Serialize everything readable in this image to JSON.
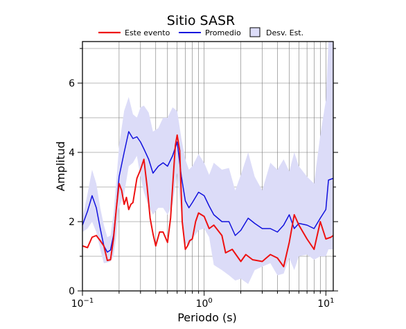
{
  "chart_data": {
    "type": "line",
    "title": "Sitio SASR",
    "xlabel": "Periodo (s)",
    "ylabel": "Amplitud",
    "x_scale": "log",
    "xlim": [
      0.1,
      11.5
    ],
    "ylim": [
      0,
      7.2
    ],
    "x_ticks": [
      {
        "value": 0.1,
        "base": "10",
        "exp": "−1"
      },
      {
        "value": 1,
        "base": "10",
        "exp": "0"
      },
      {
        "value": 10,
        "base": "10",
        "exp": "1"
      }
    ],
    "y_ticks": [
      {
        "value": 0,
        "label": "0"
      },
      {
        "value": 2,
        "label": "2"
      },
      {
        "value": 4,
        "label": "4"
      },
      {
        "value": 6,
        "label": "6"
      }
    ],
    "grid": true,
    "legend_position": "top",
    "colors": {
      "este_evento": "#ee1111",
      "promedio": "#1111dd",
      "desv_fill": "#dcdcf8"
    },
    "legend": {
      "este_evento": "Este evento",
      "promedio": "Promedio",
      "desv": "Desv. Est."
    },
    "series": [
      {
        "name": "Este evento",
        "x": [
          0.1,
          0.11,
          0.12,
          0.13,
          0.14,
          0.15,
          0.16,
          0.17,
          0.18,
          0.19,
          0.2,
          0.21,
          0.22,
          0.23,
          0.24,
          0.25,
          0.26,
          0.28,
          0.3,
          0.32,
          0.34,
          0.36,
          0.38,
          0.4,
          0.43,
          0.46,
          0.5,
          0.53,
          0.56,
          0.58,
          0.6,
          0.63,
          0.66,
          0.7,
          0.73,
          0.76,
          0.8,
          0.85,
          0.9,
          1.0,
          1.1,
          1.2,
          1.4,
          1.5,
          1.7,
          2.0,
          2.2,
          2.5,
          3.0,
          3.5,
          4.0,
          4.5,
          5.0,
          5.5,
          6.0,
          7.0,
          8.0,
          9.0,
          10.0,
          11.0,
          11.5
        ],
        "y": [
          1.3,
          1.25,
          1.55,
          1.6,
          1.45,
          1.3,
          0.88,
          0.9,
          1.5,
          2.4,
          3.1,
          2.9,
          2.5,
          2.7,
          2.35,
          2.5,
          2.55,
          3.25,
          3.5,
          3.8,
          3.0,
          2.1,
          1.65,
          1.3,
          1.7,
          1.7,
          1.4,
          2.1,
          3.4,
          4.2,
          4.5,
          4.05,
          2.0,
          1.2,
          1.3,
          1.45,
          1.5,
          2.0,
          2.25,
          2.15,
          1.8,
          1.9,
          1.6,
          1.1,
          1.2,
          0.85,
          1.05,
          0.9,
          0.85,
          1.05,
          0.95,
          0.7,
          1.4,
          2.2,
          1.9,
          1.5,
          1.2,
          2.0,
          1.5,
          1.55,
          1.6
        ]
      },
      {
        "name": "Promedio",
        "x": [
          0.1,
          0.11,
          0.12,
          0.13,
          0.14,
          0.15,
          0.16,
          0.17,
          0.18,
          0.19,
          0.2,
          0.22,
          0.24,
          0.26,
          0.28,
          0.3,
          0.32,
          0.35,
          0.38,
          0.42,
          0.46,
          0.5,
          0.55,
          0.6,
          0.65,
          0.7,
          0.75,
          0.8,
          0.9,
          1.0,
          1.1,
          1.2,
          1.4,
          1.6,
          1.8,
          2.0,
          2.3,
          2.6,
          3.0,
          3.5,
          4.0,
          4.5,
          5.0,
          5.5,
          6.0,
          7.0,
          8.0,
          9.0,
          10.0,
          10.5,
          11.5
        ],
        "y": [
          1.9,
          2.3,
          2.75,
          2.4,
          1.8,
          1.3,
          1.12,
          1.18,
          1.6,
          2.4,
          3.3,
          4.0,
          4.6,
          4.4,
          4.45,
          4.3,
          4.1,
          3.8,
          3.4,
          3.6,
          3.7,
          3.6,
          3.9,
          4.3,
          3.3,
          2.6,
          2.4,
          2.55,
          2.85,
          2.75,
          2.45,
          2.2,
          2.0,
          2.0,
          1.6,
          1.75,
          2.1,
          1.95,
          1.8,
          1.8,
          1.7,
          1.9,
          2.2,
          1.8,
          1.95,
          1.9,
          1.8,
          2.1,
          2.35,
          3.2,
          3.25
        ]
      }
    ],
    "band": {
      "name": "Desv. Est.",
      "x": [
        0.1,
        0.11,
        0.12,
        0.13,
        0.14,
        0.15,
        0.16,
        0.17,
        0.18,
        0.19,
        0.2,
        0.22,
        0.24,
        0.26,
        0.28,
        0.3,
        0.32,
        0.35,
        0.38,
        0.42,
        0.46,
        0.5,
        0.55,
        0.6,
        0.65,
        0.7,
        0.75,
        0.8,
        0.9,
        1.0,
        1.1,
        1.2,
        1.4,
        1.6,
        1.8,
        2.0,
        2.3,
        2.6,
        3.0,
        3.5,
        4.0,
        4.5,
        5.0,
        5.5,
        6.0,
        7.0,
        8.0,
        9.0,
        10.0,
        10.5,
        11.5
      ],
      "upper": [
        2.1,
        2.8,
        3.5,
        3.1,
        2.4,
        1.9,
        1.55,
        1.6,
        2.2,
        3.2,
        4.2,
        5.2,
        5.6,
        5.1,
        5.0,
        5.3,
        5.35,
        5.15,
        4.6,
        4.7,
        5.0,
        5.0,
        5.3,
        5.2,
        4.4,
        3.8,
        3.5,
        3.6,
        3.95,
        3.7,
        3.35,
        3.7,
        3.5,
        3.55,
        2.9,
        3.35,
        4.0,
        3.3,
        2.9,
        3.7,
        3.5,
        3.8,
        3.45,
        4.0,
        3.6,
        3.3,
        3.1,
        4.5,
        5.5,
        7.2,
        7.2
      ],
      "lower": [
        1.7,
        1.8,
        2.0,
        1.7,
        1.2,
        0.8,
        0.82,
        0.85,
        1.0,
        1.6,
        2.4,
        2.8,
        3.6,
        3.7,
        3.9,
        3.3,
        2.85,
        2.45,
        2.2,
        2.4,
        2.4,
        2.2,
        2.5,
        3.4,
        2.2,
        1.4,
        1.3,
        1.5,
        1.75,
        1.8,
        1.55,
        0.75,
        0.6,
        0.45,
        0.3,
        0.35,
        0.2,
        0.6,
        0.7,
        0.8,
        0.45,
        0.5,
        0.95,
        0.6,
        1.0,
        1.05,
        0.9,
        1.0,
        1.0,
        1.2,
        1.2
      ]
    }
  }
}
